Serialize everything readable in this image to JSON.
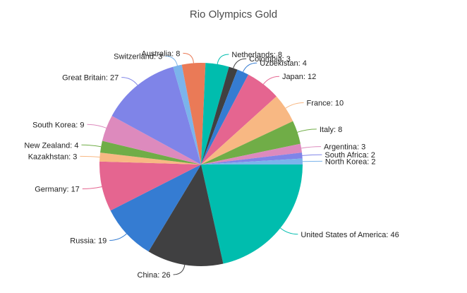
{
  "chart_data": {
    "type": "pie",
    "title": "Rio Olympics Gold",
    "start_angle_deg": 90,
    "slices": [
      {
        "label": "United States of America",
        "value": 46,
        "color": "#00bdae"
      },
      {
        "label": "China",
        "value": 26,
        "color": "#404041"
      },
      {
        "label": "Russia",
        "value": 19,
        "color": "#357cd2"
      },
      {
        "label": "Germany",
        "value": 17,
        "color": "#e56590"
      },
      {
        "label": "Kazakhstan",
        "value": 3,
        "color": "#f8b883"
      },
      {
        "label": "New Zealand",
        "value": 4,
        "color": "#70ad47"
      },
      {
        "label": "South Korea",
        "value": 9,
        "color": "#dd8abd"
      },
      {
        "label": "Great Britain",
        "value": 27,
        "color": "#7f84e8"
      },
      {
        "label": "Switzerland",
        "value": 3,
        "color": "#7bb4eb"
      },
      {
        "label": "Australia",
        "value": 8,
        "color": "#ea7a57"
      },
      {
        "label": "Netherlands",
        "value": 8,
        "color": "#00bdae"
      },
      {
        "label": "Colombia",
        "value": 3,
        "color": "#404041"
      },
      {
        "label": "Uzbekistan",
        "value": 4,
        "color": "#357cd2"
      },
      {
        "label": "Japan",
        "value": 12,
        "color": "#e56590"
      },
      {
        "label": "France",
        "value": 10,
        "color": "#f8b883"
      },
      {
        "label": "Italy",
        "value": 8,
        "color": "#70ad47"
      },
      {
        "label": "Argentina",
        "value": 3,
        "color": "#dd8abd"
      },
      {
        "label": "South Africa",
        "value": 2,
        "color": "#7f84e8"
      },
      {
        "label": "North Korea",
        "value": 2,
        "color": "#7bb4eb"
      }
    ]
  }
}
